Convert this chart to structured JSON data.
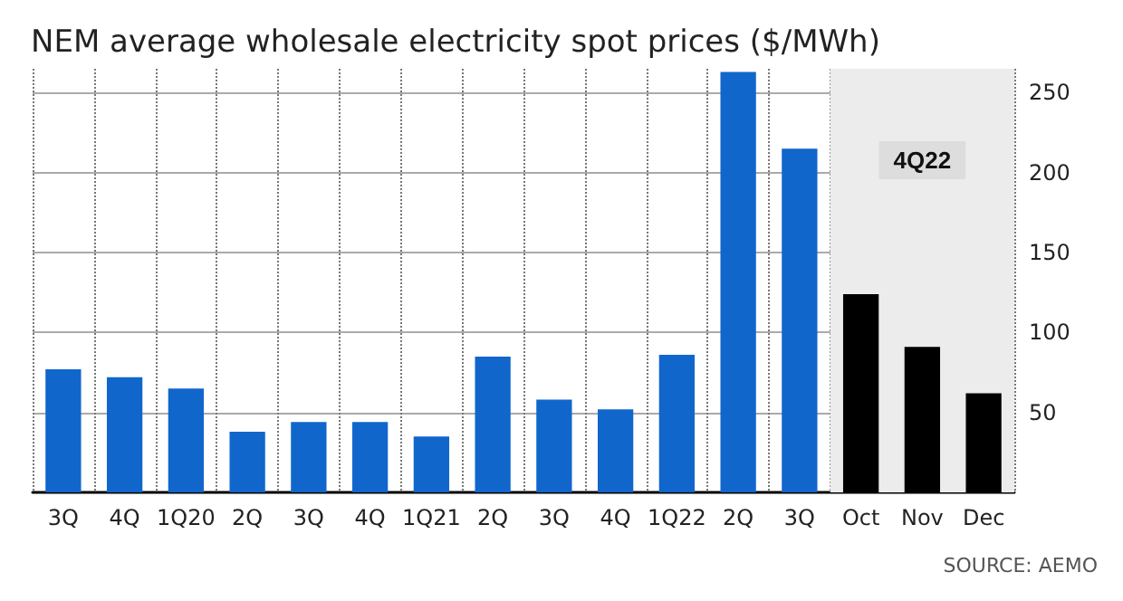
{
  "chart_data": {
    "type": "bar",
    "title": "NEM average wholesale electricity spot prices ($/MWh)",
    "categories": [
      "3Q",
      "4Q",
      "1Q20",
      "2Q",
      "3Q",
      "4Q",
      "1Q21",
      "2Q",
      "3Q",
      "4Q",
      "1Q22",
      "2Q",
      "3Q",
      "Oct",
      "Nov",
      "Dec"
    ],
    "values": [
      77,
      72,
      65,
      38,
      44,
      44,
      35,
      85,
      58,
      52,
      86,
      263,
      215,
      124,
      91,
      62
    ],
    "colors": [
      "#1166cc",
      "#1166cc",
      "#1166cc",
      "#1166cc",
      "#1166cc",
      "#1166cc",
      "#1166cc",
      "#1166cc",
      "#1166cc",
      "#1166cc",
      "#1166cc",
      "#1166cc",
      "#1166cc",
      "#000000",
      "#000000",
      "#000000"
    ],
    "ylim": [
      0,
      265
    ],
    "yticks": [
      50,
      100,
      150,
      200,
      250
    ],
    "grid": true,
    "bands": [
      {
        "axis": "x",
        "from": "Oct",
        "to": "Dec",
        "label": "4Q22",
        "color": "#ececec"
      }
    ],
    "annotations": [
      "SOURCE: AEMO"
    ]
  }
}
